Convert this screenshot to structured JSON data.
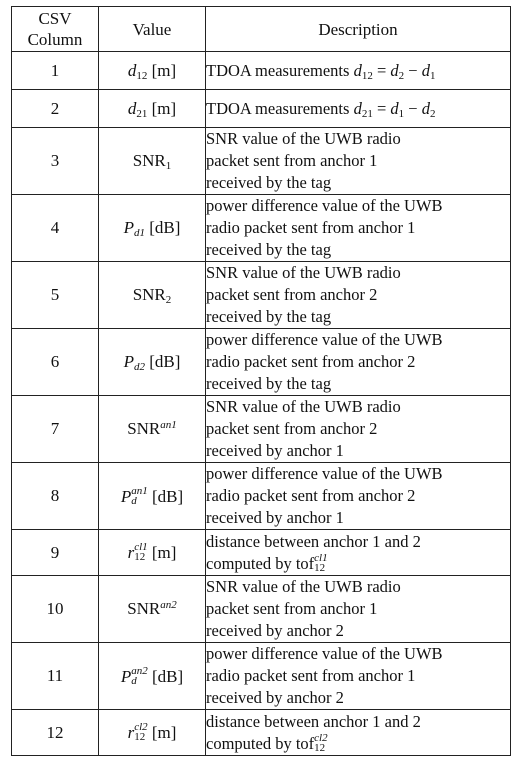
{
  "headers": {
    "col1_line1": "CSV",
    "col1_line2": "Column",
    "col2": "Value",
    "col3": "Description"
  },
  "rows": [
    {
      "col": "1",
      "desc_text": "TDOA measurements",
      "var": "d",
      "var_sub": "12",
      "unit": "[m]",
      "eq": "d12 = d2 − d1"
    },
    {
      "col": "2",
      "desc_text": "TDOA measurements",
      "var": "d",
      "var_sub": "21",
      "unit": "[m]",
      "eq": "d21 = d1 − d2"
    },
    {
      "col": "3",
      "val_base": "SNR",
      "val_sub": "1",
      "lines": [
        "SNR value of the UWB radio",
        "packet sent from anchor 1",
        "received by the tag"
      ]
    },
    {
      "col": "4",
      "val_base": "P",
      "val_sub": "d1",
      "unit": "[dB]",
      "lines": [
        "power difference value of the UWB",
        "radio packet sent from anchor 1",
        "received by the tag"
      ]
    },
    {
      "col": "5",
      "val_base": "SNR",
      "val_sub": "2",
      "lines": [
        "SNR value of the UWB radio",
        "packet sent from anchor 2",
        "received by the tag"
      ]
    },
    {
      "col": "6",
      "val_base": "P",
      "val_sub": "d2",
      "unit": "[dB]",
      "lines": [
        "power difference value of the UWB",
        "radio packet sent from anchor 2",
        "received by the tag"
      ]
    },
    {
      "col": "7",
      "val_base": "SNR",
      "val_sup": "an1",
      "lines": [
        "SNR value of the UWB radio",
        "packet sent from anchor 2",
        "received by anchor 1"
      ]
    },
    {
      "col": "8",
      "val_base": "P",
      "val_sub": "d",
      "val_sup": "an1",
      "unit": "[dB]",
      "lines": [
        "power difference value of the UWB",
        "radio packet sent from anchor 2",
        "received by anchor 1"
      ]
    },
    {
      "col": "9",
      "val_base": "r",
      "val_sub": "12",
      "val_sup": "cl1",
      "unit": "[m]",
      "lines": [
        "distance between anchor 1 and 2",
        "computed by"
      ],
      "tof": "tof",
      "tof_sub": "12",
      "tof_sup": "cl1"
    },
    {
      "col": "10",
      "val_base": "SNR",
      "val_sup": "an2",
      "lines": [
        "SNR value of the UWB radio",
        "packet sent from anchor 1",
        "received by anchor 2"
      ]
    },
    {
      "col": "11",
      "val_base": "P",
      "val_sub": "d",
      "val_sup": "an2",
      "unit": "[dB]",
      "lines": [
        "power difference value of the UWB",
        "radio packet sent from anchor 1",
        "received by anchor 2"
      ]
    },
    {
      "col": "12",
      "val_base": "r",
      "val_sub": "12",
      "val_sup": "cl2",
      "unit": "[m]",
      "lines": [
        "distance between anchor 1 and 2",
        "computed by"
      ],
      "tof": "tof",
      "tof_sub": "12",
      "tof_sup": "cl2"
    }
  ]
}
